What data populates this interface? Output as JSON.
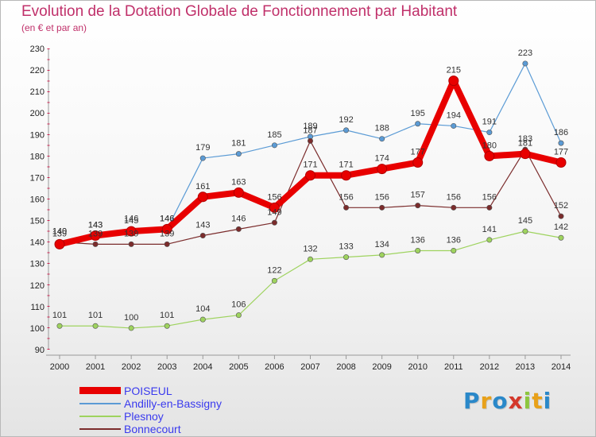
{
  "chart_data": {
    "type": "line",
    "title": "Evolution de la Dotation Globale de Fonctionnement par Habitant",
    "subtitle": "(en € et par an)",
    "xlabel": "",
    "ylabel": "",
    "ylim": [
      90,
      230
    ],
    "y_ticks": [
      "90",
      "100",
      "110",
      "120",
      "130",
      "140",
      "150",
      "160",
      "170",
      "180",
      "190",
      "200",
      "210",
      "220",
      "230"
    ],
    "categories": [
      "2000",
      "2001",
      "2002",
      "2003",
      "2004",
      "2005",
      "2006",
      "2007",
      "2008",
      "2009",
      "2010",
      "2011",
      "2012",
      "2013",
      "2014"
    ],
    "grid": false,
    "legend_position": "bottom-left",
    "series": [
      {
        "name": "Andilly-en-Bassigny",
        "color": "#5b9bd5",
        "values": [
          140,
          143,
          146,
          146,
          179,
          181,
          185,
          189,
          192,
          188,
          195,
          194,
          191,
          223,
          186
        ],
        "labels": [
          "140",
          "143",
          "146",
          "146",
          "179",
          "181",
          "185",
          "189",
          "192",
          "188",
          "195",
          "194",
          "191",
          "223",
          "186"
        ]
      },
      {
        "name": "Plesnoy",
        "color": "#9ed35e",
        "values": [
          101,
          101,
          100,
          101,
          104,
          106,
          122,
          132,
          133,
          134,
          136,
          136,
          141,
          145,
          142
        ],
        "labels": [
          "101",
          "101",
          "100",
          "101",
          "104",
          "106",
          "122",
          "132",
          "133",
          "134",
          "136",
          "136",
          "141",
          "145",
          "142"
        ]
      },
      {
        "name": "Bonnecourt",
        "color": "#7b2c2c",
        "values": [
          140,
          139,
          139,
          139,
          143,
          146,
          149,
          187,
          156,
          156,
          157,
          156,
          156,
          183,
          152
        ],
        "labels": [
          "140",
          "139",
          "139",
          "139",
          "143",
          "146",
          "149",
          "187",
          "156",
          "156",
          "157",
          "156",
          "156",
          "183",
          "152"
        ]
      },
      {
        "name": "POISEUL",
        "color": "#e80000",
        "values": [
          139,
          143,
          145,
          146,
          161,
          163,
          156,
          171,
          171,
          174,
          177,
          215,
          180,
          181,
          177
        ],
        "labels": [
          "139",
          "143",
          "145",
          "146",
          "161",
          "163",
          "156",
          "171",
          "171",
          "174",
          "177",
          "215",
          "180",
          "181",
          "177"
        ]
      }
    ],
    "legend": [
      {
        "name": "POISEUL",
        "color": "#e80000"
      },
      {
        "name": "Andilly-en-Bassigny",
        "color": "#5b9bd5"
      },
      {
        "name": "Plesnoy",
        "color": "#9ed35e"
      },
      {
        "name": "Bonnecourt",
        "color": "#7b2c2c"
      }
    ]
  },
  "logo": {
    "text": "Proxiti",
    "letters": [
      {
        "ch": "P",
        "color": "#2a88c9"
      },
      {
        "ch": "r",
        "color": "#e8a11a"
      },
      {
        "ch": "o",
        "color": "#2a88c9"
      },
      {
        "ch": "x",
        "color": "#d4382b"
      },
      {
        "ch": "i",
        "color": "#8cc63e"
      },
      {
        "ch": "t",
        "color": "#e8a11a"
      },
      {
        "ch": "i",
        "color": "#2a88c9"
      }
    ]
  }
}
